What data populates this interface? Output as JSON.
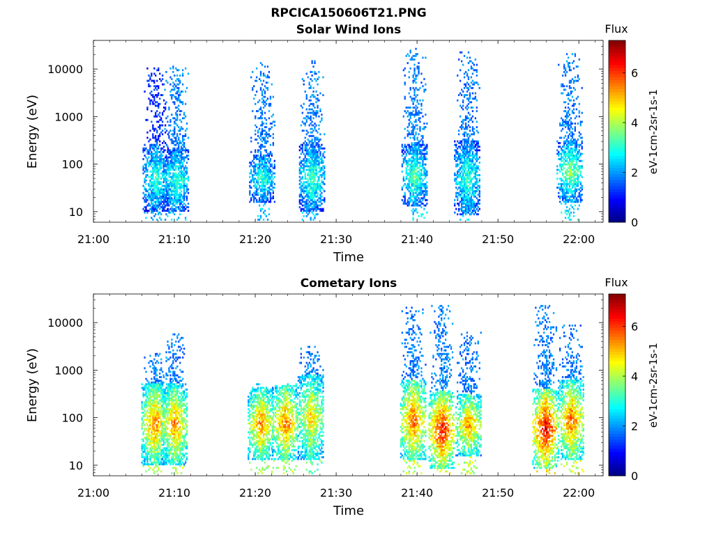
{
  "figure": {
    "file_title": "RPCICA150606T21.PNG"
  },
  "chart_data": [
    {
      "type": "heatmap",
      "title": "Solar Wind Ions",
      "xlabel": "Time",
      "ylabel": "Energy (eV)",
      "x_ticks": [
        "21:00",
        "21:10",
        "21:20",
        "21:30",
        "21:40",
        "21:50",
        "22:00"
      ],
      "xlim": [
        "21:00",
        "22:03"
      ],
      "y_scale": "log",
      "y_ticks": [
        10,
        100,
        1000,
        10000
      ],
      "ylim": [
        6,
        40000
      ],
      "colorbar": {
        "title": "Flux",
        "label": "eV-1cm-2sr-1s-1",
        "ticks": [
          0,
          2,
          4,
          6
        ],
        "range": [
          0,
          7.3
        ],
        "colormap": "jet"
      },
      "bursts": [
        {
          "time": "21:07:40",
          "core_energy_range": [
            10,
            250
          ],
          "core_flux": 3.2,
          "tail_max_energy": 10000,
          "tail_flux": 1.2
        },
        {
          "time": "21:10:10",
          "core_energy_range": [
            10,
            200
          ],
          "core_flux": 3.3,
          "tail_max_energy": 11000,
          "tail_flux": 1.8
        },
        {
          "time": "21:20:50",
          "core_energy_range": [
            15,
            150
          ],
          "core_flux": 3.2,
          "tail_max_energy": 14000,
          "tail_flux": 1.8
        },
        {
          "time": "21:27:00",
          "core_energy_range": [
            10,
            250
          ],
          "core_flux": 3.4,
          "tail_max_energy": 15000,
          "tail_flux": 1.8
        },
        {
          "time": "21:39:40",
          "core_energy_range": [
            12,
            250
          ],
          "core_flux": 3.5,
          "tail_max_energy": 27000,
          "tail_flux": 1.8
        },
        {
          "time": "21:46:10",
          "core_energy_range": [
            8,
            300
          ],
          "core_flux": 3.3,
          "tail_max_energy": 22000,
          "tail_flux": 1.8
        },
        {
          "time": "21:58:50",
          "core_energy_range": [
            15,
            300
          ],
          "core_flux": 3.8,
          "tail_max_energy": 20000,
          "tail_flux": 1.8
        }
      ]
    },
    {
      "type": "heatmap",
      "title": "Cometary Ions",
      "xlabel": "Time",
      "ylabel": "Energy (eV)",
      "x_ticks": [
        "21:00",
        "21:10",
        "21:20",
        "21:30",
        "21:40",
        "21:50",
        "22:00"
      ],
      "xlim": [
        "21:00",
        "22:03"
      ],
      "y_scale": "log",
      "y_ticks": [
        10,
        100,
        1000,
        10000
      ],
      "ylim": [
        6,
        40000
      ],
      "colorbar": {
        "title": "Flux",
        "label": "eV-1cm-2sr-1s-1",
        "ticks": [
          0,
          2,
          4,
          6
        ],
        "range": [
          0,
          7.3
        ],
        "colormap": "jet"
      },
      "bursts": [
        {
          "time": "21:07:30",
          "core_energy_range": [
            10,
            500
          ],
          "core_flux": 5.7,
          "tail_max_energy": 2500,
          "tail_flux": 1.8
        },
        {
          "time": "21:10:00",
          "core_energy_range": [
            10,
            500
          ],
          "core_flux": 5.6,
          "tail_max_energy": 5500,
          "tail_flux": 1.8
        },
        {
          "time": "21:20:40",
          "core_energy_range": [
            12,
            400
          ],
          "core_flux": 5.6,
          "tail_max_energy": 500,
          "tail_flux": 2.5
        },
        {
          "time": "21:23:40",
          "core_energy_range": [
            12,
            450
          ],
          "core_flux": 5.8,
          "tail_max_energy": 500,
          "tail_flux": 2.5
        },
        {
          "time": "21:26:50",
          "core_energy_range": [
            12,
            800
          ],
          "core_flux": 5.0,
          "tail_max_energy": 3000,
          "tail_flux": 1.8
        },
        {
          "time": "21:39:30",
          "core_energy_range": [
            12,
            600
          ],
          "core_flux": 5.9,
          "tail_max_energy": 20000,
          "tail_flux": 1.8
        },
        {
          "time": "21:43:00",
          "core_energy_range": [
            8,
            350
          ],
          "core_flux": 6.6,
          "tail_max_energy": 22000,
          "tail_flux": 1.8
        },
        {
          "time": "21:46:20",
          "core_energy_range": [
            15,
            300
          ],
          "core_flux": 5.6,
          "tail_max_energy": 6000,
          "tail_flux": 1.8
        },
        {
          "time": "21:55:50",
          "core_energy_range": [
            8,
            400
          ],
          "core_flux": 6.8,
          "tail_max_energy": 22000,
          "tail_flux": 1.8
        },
        {
          "time": "21:59:00",
          "core_energy_range": [
            12,
            600
          ],
          "core_flux": 5.9,
          "tail_max_energy": 9000,
          "tail_flux": 1.8
        }
      ]
    }
  ]
}
